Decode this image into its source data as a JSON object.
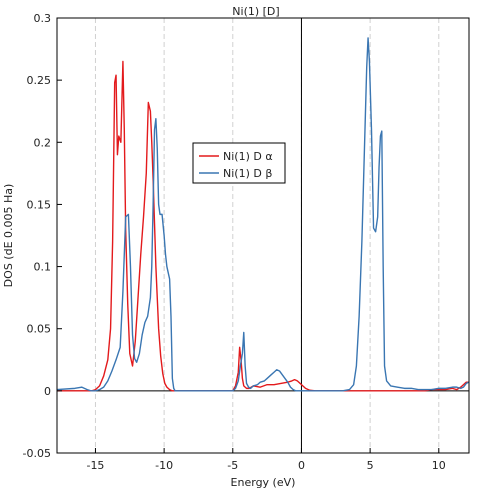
{
  "chart_data": {
    "type": "line",
    "title": "Ni(1) [D]",
    "xlabel": "Energy (eV)",
    "ylabel": "DOS (dE 0.005 Ha)",
    "xlim": [
      -17.8,
      12.2
    ],
    "ylim": [
      -0.05,
      0.3
    ],
    "xticks": [
      -15,
      -10,
      -5,
      0,
      5,
      10
    ],
    "xtick_labels": [
      "-15",
      "-10",
      "-5",
      "0",
      "5",
      "10"
    ],
    "yticks": [
      -0.05,
      0,
      0.05,
      0.1,
      0.15,
      0.2,
      0.25,
      0.3
    ],
    "ytick_labels": [
      "-0.05",
      "0",
      "0.05",
      "0.1",
      "0.15",
      "0.2",
      "0.25",
      "0.3"
    ],
    "fermi_level": 0,
    "grid": "x-major dashed",
    "legend_position": "center",
    "series": [
      {
        "name": "Ni(1) D α",
        "color": "#e31a1c",
        "x": [
          -17.8,
          -15.3,
          -15.0,
          -14.7,
          -14.4,
          -14.1,
          -13.9,
          -13.75,
          -13.6,
          -13.5,
          -13.4,
          -13.3,
          -13.15,
          -13.0,
          -12.9,
          -12.8,
          -12.65,
          -12.5,
          -12.3,
          -12.1,
          -11.9,
          -11.7,
          -11.5,
          -11.3,
          -11.15,
          -11.0,
          -10.9,
          -10.8,
          -10.7,
          -10.6,
          -10.5,
          -10.4,
          -10.25,
          -10.1,
          -9.95,
          -9.8,
          -9.6,
          -9.4,
          -9.2,
          -9.0,
          -5.0,
          -4.8,
          -4.6,
          -4.5,
          -4.4,
          -4.3,
          -4.2,
          -4.0,
          -3.8,
          -3.5,
          -3.0,
          -2.5,
          -2.0,
          -1.5,
          -1.0,
          -0.7,
          -0.5,
          -0.3,
          -0.1,
          0.0,
          0.3,
          0.6,
          1.0,
          2.0,
          3.0,
          4.0,
          5.0,
          6.0,
          7.0,
          8.0,
          9.0,
          9.5,
          10.0,
          10.5,
          11.0,
          11.3,
          11.6,
          11.8,
          12.0,
          12.2
        ],
        "values": [
          0.0,
          0.0,
          0.001,
          0.004,
          0.012,
          0.025,
          0.05,
          0.12,
          0.248,
          0.254,
          0.19,
          0.205,
          0.2,
          0.265,
          0.21,
          0.13,
          0.07,
          0.03,
          0.02,
          0.04,
          0.075,
          0.11,
          0.14,
          0.175,
          0.232,
          0.225,
          0.2,
          0.17,
          0.135,
          0.1,
          0.075,
          0.05,
          0.028,
          0.014,
          0.006,
          0.003,
          0.001,
          0.0,
          0.0,
          0.0,
          0.0,
          0.004,
          0.015,
          0.035,
          0.025,
          0.01,
          0.004,
          0.002,
          0.002,
          0.004,
          0.003,
          0.005,
          0.005,
          0.006,
          0.007,
          0.008,
          0.009,
          0.008,
          0.006,
          0.005,
          0.002,
          0.0005,
          0.0,
          0.0,
          0.0,
          0.0,
          0.0,
          0.0,
          0.0,
          0.0,
          0.0,
          0.001,
          0.001,
          0.001,
          0.002,
          0.001,
          0.003,
          0.005,
          0.007,
          0.007
        ]
      },
      {
        "name": "Ni(1) D β",
        "color": "#3a76b2",
        "x": [
          -17.8,
          -16.5,
          -16.0,
          -15.6,
          -15.3,
          -15.0,
          -14.7,
          -14.4,
          -14.1,
          -13.8,
          -13.5,
          -13.2,
          -13.0,
          -12.8,
          -12.6,
          -12.45,
          -12.3,
          -12.15,
          -12.0,
          -11.8,
          -11.6,
          -11.4,
          -11.2,
          -11.0,
          -10.9,
          -10.8,
          -10.7,
          -10.6,
          -10.5,
          -10.4,
          -10.3,
          -10.15,
          -10.0,
          -9.9,
          -9.8,
          -9.7,
          -9.6,
          -9.5,
          -9.4,
          -9.3,
          -9.2,
          -9.0,
          -5.0,
          -4.8,
          -4.6,
          -4.45,
          -4.3,
          -4.2,
          -4.1,
          -4.0,
          -3.85,
          -3.7,
          -3.5,
          -3.2,
          -3.0,
          -2.7,
          -2.5,
          -2.2,
          -2.0,
          -1.8,
          -1.6,
          -1.4,
          -1.2,
          -1.0,
          -0.8,
          -0.6,
          -0.4,
          -0.2,
          0.0,
          0.5,
          1.0,
          2.0,
          3.0,
          3.5,
          3.8,
          4.0,
          4.2,
          4.4,
          4.6,
          4.75,
          4.85,
          4.95,
          5.1,
          5.25,
          5.4,
          5.55,
          5.65,
          5.75,
          5.85,
          5.95,
          6.05,
          6.2,
          6.5,
          7.0,
          7.5,
          8.0,
          8.5,
          9.0,
          9.5,
          10.0,
          10.5,
          11.0,
          11.3,
          11.6,
          11.8,
          12.0,
          12.2
        ],
        "values": [
          0.001,
          0.002,
          0.003,
          0.001,
          0.0,
          0.0,
          0.001,
          0.003,
          0.008,
          0.016,
          0.025,
          0.035,
          0.08,
          0.14,
          0.142,
          0.1,
          0.045,
          0.026,
          0.023,
          0.03,
          0.045,
          0.055,
          0.06,
          0.075,
          0.1,
          0.15,
          0.21,
          0.219,
          0.195,
          0.15,
          0.142,
          0.142,
          0.125,
          0.11,
          0.1,
          0.095,
          0.09,
          0.06,
          0.01,
          0.002,
          0.0,
          0.0,
          0.0,
          0.002,
          0.008,
          0.02,
          0.03,
          0.047,
          0.02,
          0.006,
          0.003,
          0.002,
          0.004,
          0.005,
          0.007,
          0.008,
          0.01,
          0.013,
          0.015,
          0.017,
          0.016,
          0.013,
          0.01,
          0.007,
          0.003,
          0.001,
          0.0,
          0.0,
          0.0,
          0.0,
          0.0,
          0.0,
          0.0,
          0.001,
          0.005,
          0.02,
          0.06,
          0.12,
          0.2,
          0.26,
          0.284,
          0.265,
          0.21,
          0.131,
          0.128,
          0.14,
          0.18,
          0.205,
          0.209,
          0.1,
          0.02,
          0.008,
          0.004,
          0.003,
          0.002,
          0.002,
          0.001,
          0.001,
          0.001,
          0.002,
          0.002,
          0.003,
          0.003,
          0.002,
          0.003,
          0.006,
          0.007
        ]
      }
    ]
  }
}
